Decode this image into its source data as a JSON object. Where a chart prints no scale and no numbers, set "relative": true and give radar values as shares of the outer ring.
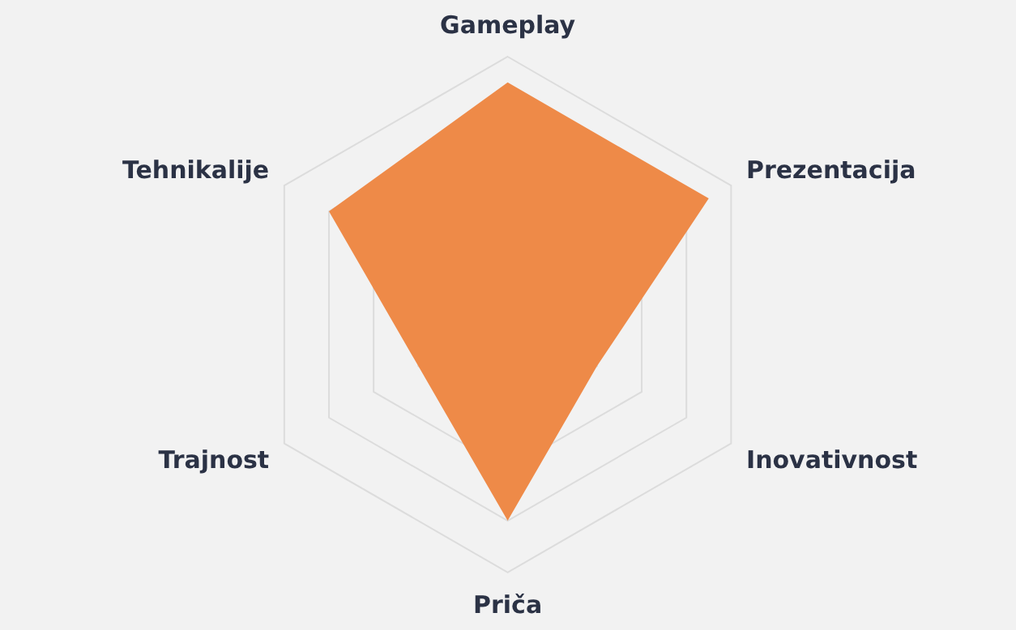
{
  "chart_data": {
    "type": "radar",
    "relative": true,
    "grid": true,
    "categories": [
      "Gameplay",
      "Prezentacija",
      "Inovativnost",
      "Priča",
      "Trajnost",
      "Tehnikalije"
    ],
    "series": [
      {
        "color": "#ee8a48",
        "values": [
          0.9,
          0.9,
          0.4,
          0.8,
          0.4,
          0.8
        ]
      }
    ]
  }
}
